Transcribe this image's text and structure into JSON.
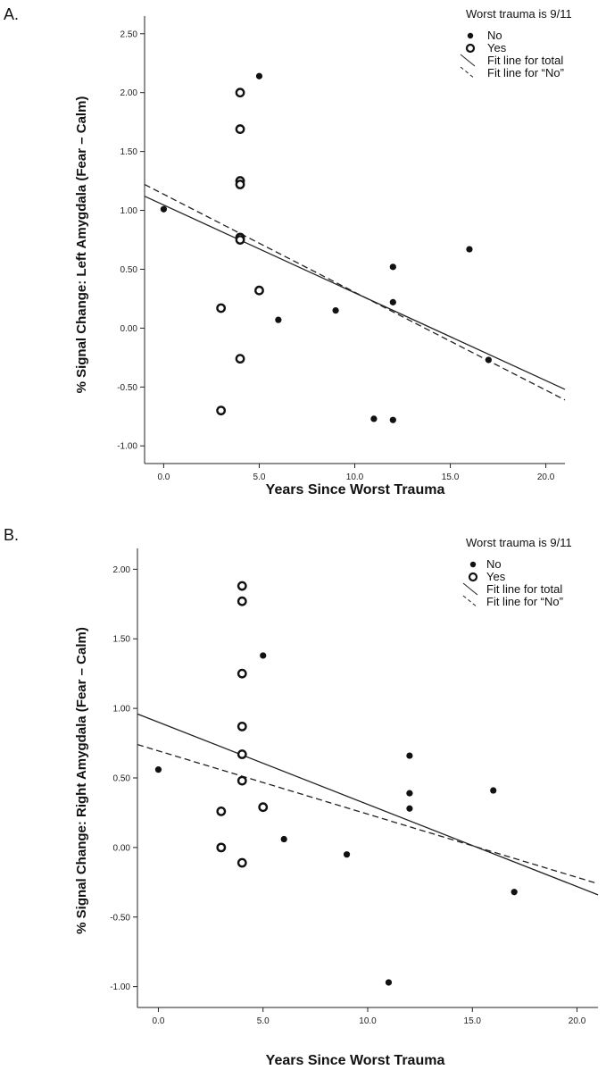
{
  "chart_data": [
    {
      "type": "scatter",
      "panel_label": "A.",
      "xlabel": "Years Since Worst Trauma",
      "ylabel": "% Signal Change: Left Amygdala (Fear – Calm)",
      "xlim": [
        -1,
        21
      ],
      "ylim": [
        -1.15,
        2.65
      ],
      "xticks": [
        "0.0",
        "5.0",
        "10.0",
        "15.0",
        "20.0"
      ],
      "yticks": [
        "-1.00",
        "-0.50",
        "0.00",
        "0.50",
        "1.00",
        "1.50",
        "2.00",
        "2.50"
      ],
      "legend": {
        "title": "Worst trauma is 9/11",
        "placement": "top-right",
        "entries": [
          "No",
          "Yes",
          "Fit line for total",
          "Fit line for “No”"
        ]
      },
      "series": [
        {
          "name": "No",
          "marker": "filled",
          "points": [
            [
              0,
              1.01
            ],
            [
              5,
              2.14
            ],
            [
              6,
              0.07
            ],
            [
              9,
              0.15
            ],
            [
              11,
              -0.77
            ],
            [
              12,
              0.52
            ],
            [
              12,
              0.22
            ],
            [
              12,
              -0.78
            ],
            [
              16,
              0.67
            ],
            [
              17,
              -0.27
            ]
          ]
        },
        {
          "name": "Yes",
          "marker": "open",
          "points": [
            [
              3,
              0.17
            ],
            [
              3,
              -0.7
            ],
            [
              4,
              2.0
            ],
            [
              4,
              1.69
            ],
            [
              4,
              1.25
            ],
            [
              4,
              1.22
            ],
            [
              4,
              0.77
            ],
            [
              4,
              0.75
            ],
            [
              4,
              -0.26
            ],
            [
              5,
              0.32
            ]
          ]
        }
      ],
      "fit_lines": [
        {
          "name": "Fit line for total",
          "style": "solid",
          "x": [
            -1,
            21
          ],
          "y": [
            1.12,
            -0.52
          ]
        },
        {
          "name": "Fit line for “No”",
          "style": "dashed",
          "x": [
            -1,
            21
          ],
          "y": [
            1.22,
            -0.61
          ]
        }
      ]
    },
    {
      "type": "scatter",
      "panel_label": "B.",
      "xlabel": "Years Since Worst Trauma",
      "ylabel": "% Signal Change: Right  Amygdala (Fear – Calm)",
      "xlim": [
        -1,
        21
      ],
      "ylim": [
        -1.15,
        2.15
      ],
      "xticks": [
        "0.0",
        "5.0",
        "10.0",
        "15.0",
        "20.0"
      ],
      "yticks": [
        "-1.00",
        "-0.50",
        "0.00",
        "0.50",
        "1.00",
        "1.50",
        "2.00"
      ],
      "legend": {
        "title": "Worst trauma is 9/11",
        "placement": "top-right",
        "entries": [
          "No",
          "Yes",
          "Fit line for total",
          "Fit line for “No”"
        ]
      },
      "series": [
        {
          "name": "No",
          "marker": "filled",
          "points": [
            [
              0,
              0.56
            ],
            [
              5,
              1.38
            ],
            [
              6,
              0.06
            ],
            [
              9,
              -0.05
            ],
            [
              11,
              -0.97
            ],
            [
              12,
              0.66
            ],
            [
              12,
              0.39
            ],
            [
              12,
              0.28
            ],
            [
              16,
              0.41
            ],
            [
              17,
              -0.32
            ]
          ]
        },
        {
          "name": "Yes",
          "marker": "open",
          "points": [
            [
              3,
              0.26
            ],
            [
              3,
              0.0
            ],
            [
              4,
              1.88
            ],
            [
              4,
              1.77
            ],
            [
              4,
              1.25
            ],
            [
              4,
              0.87
            ],
            [
              4,
              0.67
            ],
            [
              4,
              0.48
            ],
            [
              4,
              -0.11
            ],
            [
              5,
              0.29
            ]
          ]
        }
      ],
      "fit_lines": [
        {
          "name": "Fit line for total",
          "style": "solid",
          "x": [
            -1,
            21
          ],
          "y": [
            0.96,
            -0.34
          ]
        },
        {
          "name": "Fit line for “No”",
          "style": "dashed",
          "x": [
            -1,
            21
          ],
          "y": [
            0.74,
            -0.26
          ]
        }
      ]
    }
  ]
}
